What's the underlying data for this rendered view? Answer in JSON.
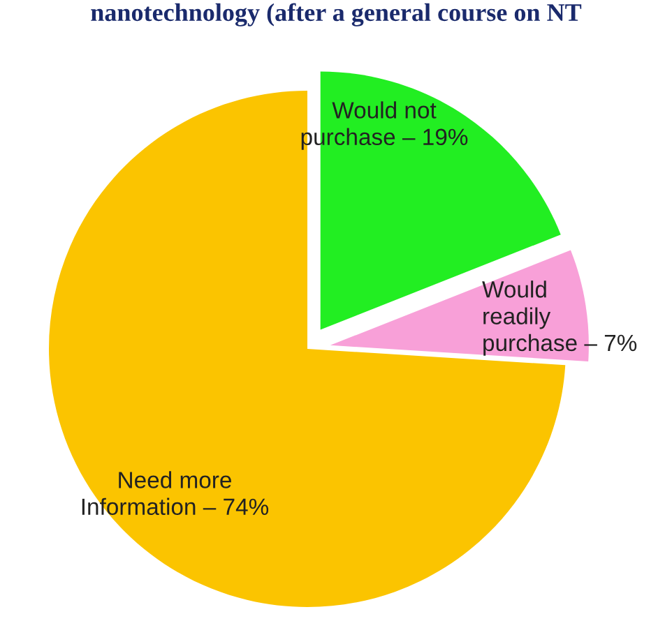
{
  "chart_data": {
    "type": "pie",
    "title": "nanotechnology (after a general course on NT",
    "categories": [
      "Would not\npurchase – 19%",
      "Would\nreadily\npurchase – 7%",
      "Need more\nInformation – 74%"
    ],
    "values": [
      19,
      7,
      74
    ],
    "colors": [
      "#22ee22",
      "#f8a0d8",
      "#fbc400"
    ]
  }
}
